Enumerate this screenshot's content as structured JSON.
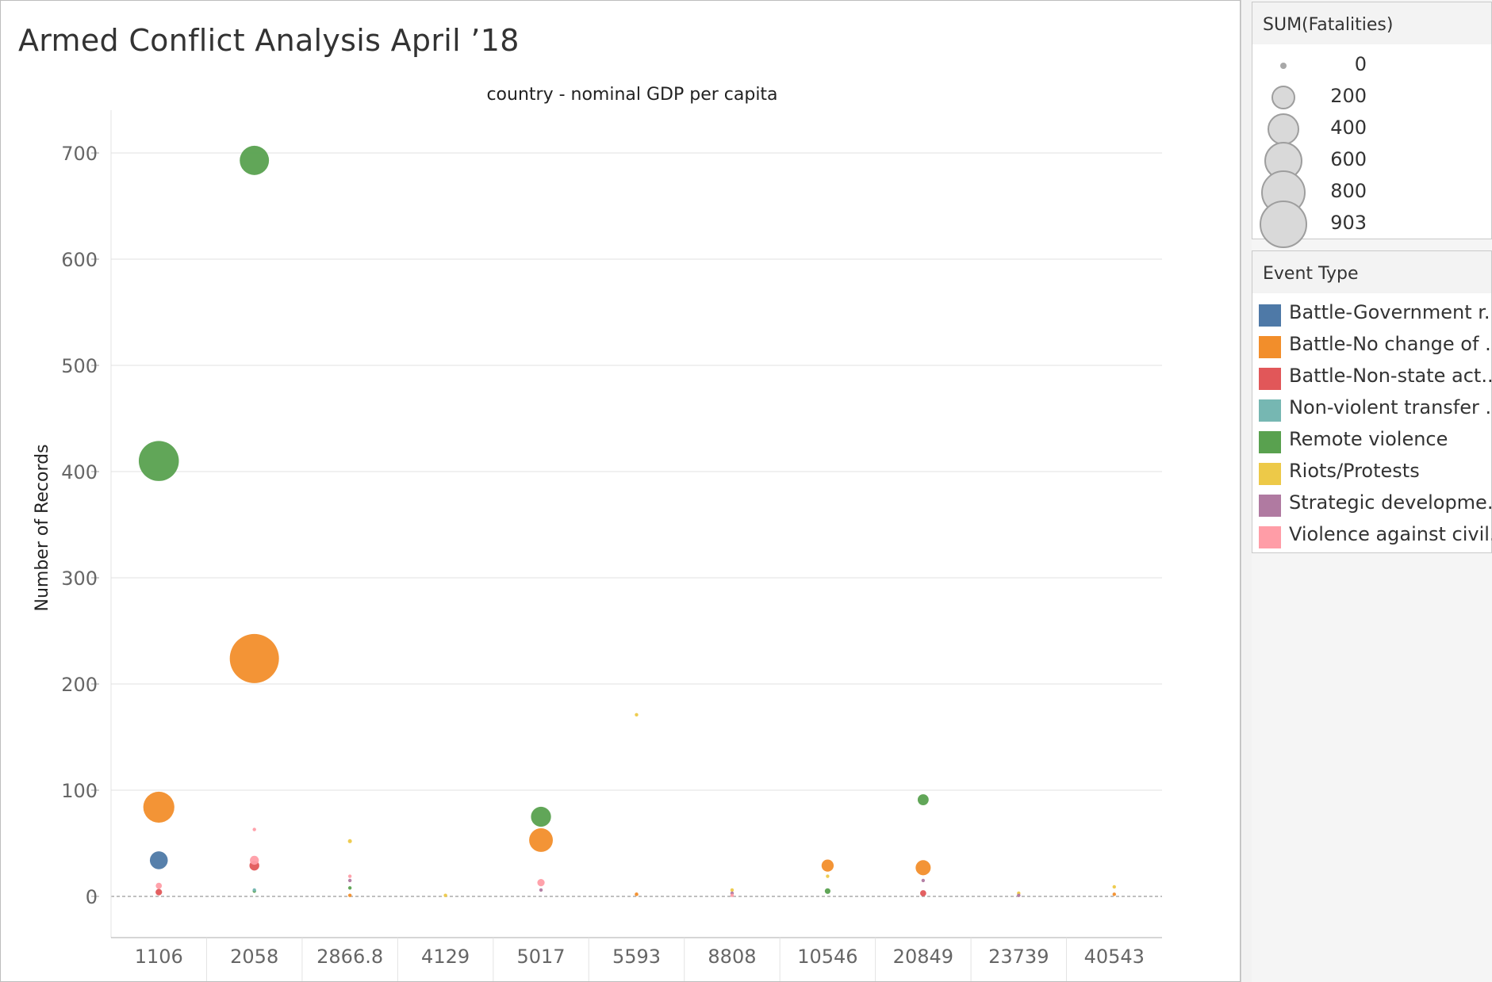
{
  "title": "Armed Conflict Analysis April ’18",
  "chart_data": {
    "type": "scatter",
    "title": "Armed Conflict Analysis April ’18",
    "column_header": "country - nominal GDP per capita",
    "xlabel": "",
    "ylabel": "Number of Records",
    "categories": [
      "1106",
      "2058",
      "2866.8",
      "4129",
      "5017",
      "5593",
      "8808",
      "10546",
      "20849",
      "23739",
      "40543"
    ],
    "yticks": [
      0,
      100,
      200,
      300,
      400,
      500,
      600,
      700
    ],
    "ylim": [
      -37,
      742
    ],
    "grid": "horizontal",
    "size_measure": "SUM(Fatalities)",
    "color_measure": "Event Type",
    "series": [
      {
        "name": "Battle-Government r..",
        "color": "#4e79a7",
        "points": [
          {
            "x": "1106",
            "y": 34,
            "size": 120
          }
        ]
      },
      {
        "name": "Battle-No change of ..",
        "color": "#f28e2b",
        "points": [
          {
            "x": "1106",
            "y": 84,
            "size": 360
          },
          {
            "x": "2058",
            "y": 224,
            "size": 903
          },
          {
            "x": "2866.8",
            "y": 1,
            "size": 3
          },
          {
            "x": "5017",
            "y": 53,
            "size": 210
          },
          {
            "x": "5593",
            "y": 2,
            "size": 5
          },
          {
            "x": "10546",
            "y": 29,
            "size": 55
          },
          {
            "x": "20849",
            "y": 27,
            "size": 85
          },
          {
            "x": "40543",
            "y": 2,
            "size": 3
          }
        ]
      },
      {
        "name": "Battle-Non-state act..",
        "color": "#e15759",
        "points": [
          {
            "x": "1106",
            "y": 4,
            "size": 16
          },
          {
            "x": "2058",
            "y": 29,
            "size": 36
          },
          {
            "x": "20849",
            "y": 3,
            "size": 14
          }
        ]
      },
      {
        "name": "Non-violent transfer ..",
        "color": "#76b7b2",
        "points": [
          {
            "x": "2058",
            "y": 6,
            "size": 2
          }
        ]
      },
      {
        "name": "Remote violence",
        "color": "#59a14f",
        "points": [
          {
            "x": "1106",
            "y": 410,
            "size": 600
          },
          {
            "x": "2058",
            "y": 693,
            "size": 320
          },
          {
            "x": "2058",
            "y": 5,
            "size": 4
          },
          {
            "x": "2866.8",
            "y": 8,
            "size": 2
          },
          {
            "x": "5017",
            "y": 75,
            "size": 150
          },
          {
            "x": "10546",
            "y": 5,
            "size": 12
          },
          {
            "x": "20849",
            "y": 91,
            "size": 45
          }
        ]
      },
      {
        "name": "Riots/Protests",
        "color": "#edc948",
        "points": [
          {
            "x": "2866.8",
            "y": 52,
            "size": 6
          },
          {
            "x": "4129",
            "y": 1,
            "size": 2
          },
          {
            "x": "5593",
            "y": 171,
            "size": 2
          },
          {
            "x": "8808",
            "y": 6,
            "size": 2
          },
          {
            "x": "10546",
            "y": 19,
            "size": 2
          },
          {
            "x": "23739",
            "y": 3,
            "size": 2
          },
          {
            "x": "40543",
            "y": 9,
            "size": 2
          }
        ]
      },
      {
        "name": "Strategic developme..",
        "color": "#b07aa1",
        "points": [
          {
            "x": "2866.8",
            "y": 15,
            "size": 2
          },
          {
            "x": "5017",
            "y": 6,
            "size": 2
          },
          {
            "x": "8808",
            "y": 3,
            "size": 2
          },
          {
            "x": "20849",
            "y": 15,
            "size": 2
          },
          {
            "x": "23739",
            "y": 1,
            "size": 2
          }
        ]
      },
      {
        "name": "Violence against civil..",
        "color": "#ff9da7",
        "points": [
          {
            "x": "1106",
            "y": 10,
            "size": 14
          },
          {
            "x": "2058",
            "y": 63,
            "size": 4
          },
          {
            "x": "2058",
            "y": 34,
            "size": 30
          },
          {
            "x": "2866.8",
            "y": 19,
            "size": 2
          },
          {
            "x": "5017",
            "y": 13,
            "size": 20
          },
          {
            "x": "8808",
            "y": 1,
            "size": 2
          }
        ]
      }
    ]
  },
  "size_legend": {
    "title": "SUM(Fatalities)",
    "values": [
      "0",
      "200",
      "400",
      "600",
      "800",
      "903"
    ]
  },
  "color_legend": {
    "title": "Event Type",
    "items": [
      {
        "label": "Battle-Government r..",
        "color": "#4e79a7"
      },
      {
        "label": "Battle-No change of ..",
        "color": "#f28e2b"
      },
      {
        "label": "Battle-Non-state act..",
        "color": "#e15759"
      },
      {
        "label": "Non-violent transfer ..",
        "color": "#76b7b2"
      },
      {
        "label": "Remote violence",
        "color": "#59a14f"
      },
      {
        "label": "Riots/Protests",
        "color": "#edc948"
      },
      {
        "label": "Strategic developme..",
        "color": "#b07aa1"
      },
      {
        "label": "Violence against civil..",
        "color": "#ff9da7"
      }
    ]
  }
}
